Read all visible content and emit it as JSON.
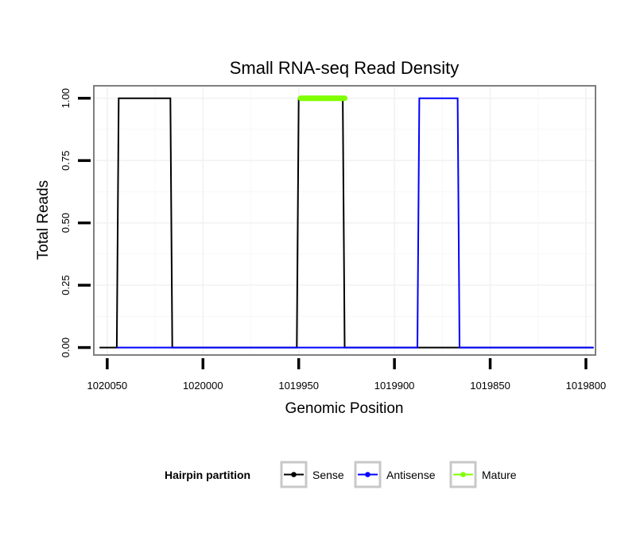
{
  "chart_data": {
    "type": "line",
    "title": "Small RNA-seq Read Density",
    "xlabel": "Genomic Position",
    "ylabel": "Total Reads",
    "xlim": [
      1020057,
      1019795
    ],
    "x_reversed": true,
    "ylim": [
      -0.03,
      1.05
    ],
    "x_ticks": [
      1020050,
      1020000,
      1019950,
      1019900,
      1019850,
      1019800
    ],
    "x_tick_labels": [
      "1020050",
      "1020000",
      "1019950",
      "1019900",
      "1019850",
      "1019800"
    ],
    "y_ticks": [
      0.0,
      0.25,
      0.5,
      0.75,
      1.0
    ],
    "y_tick_labels": [
      "0.00",
      "0.25",
      "0.50",
      "0.75",
      "1.00"
    ],
    "grid": true,
    "series": [
      {
        "name": "Sense",
        "color": "#000000",
        "x": [
          1020054,
          1020045,
          1020044,
          1020017,
          1020016,
          1019951,
          1019950,
          1019927,
          1019926,
          1019796
        ],
        "y": [
          0,
          0,
          1,
          1,
          0,
          0,
          1,
          1,
          0,
          0
        ]
      },
      {
        "name": "Antisense",
        "color": "#0000ff",
        "x": [
          1020045,
          1020016,
          1019951,
          1019926,
          1019888,
          1019887,
          1019867,
          1019866,
          1019796
        ],
        "y": [
          0,
          0,
          0,
          0,
          0,
          1,
          1,
          0,
          0
        ]
      },
      {
        "name": "Mature",
        "color": "#7fff00",
        "x": [
          1019949,
          1019926
        ],
        "y": [
          1,
          1
        ]
      }
    ],
    "legend": {
      "title": "Hairpin partition",
      "position": "bottom",
      "entries": [
        "Sense",
        "Antisense",
        "Mature"
      ]
    }
  }
}
